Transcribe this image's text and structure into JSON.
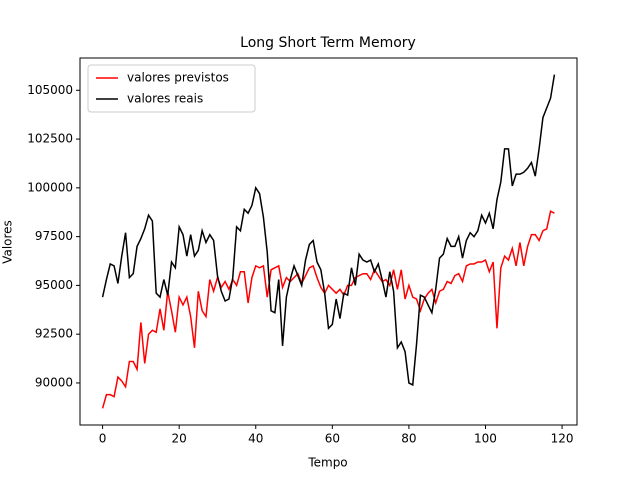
{
  "chart_data": {
    "type": "line",
    "title": "Long Short Term Memory",
    "x_label": "Tempo",
    "y_label": "Valores",
    "x": [
      0,
      1,
      2,
      3,
      4,
      5,
      6,
      7,
      8,
      9,
      10,
      11,
      12,
      13,
      14,
      15,
      16,
      17,
      18,
      19,
      20,
      21,
      22,
      23,
      24,
      25,
      26,
      27,
      28,
      29,
      30,
      31,
      32,
      33,
      34,
      35,
      36,
      37,
      38,
      39,
      40,
      41,
      42,
      43,
      44,
      45,
      46,
      47,
      48,
      49,
      50,
      51,
      52,
      53,
      54,
      55,
      56,
      57,
      58,
      59,
      60,
      61,
      62,
      63,
      64,
      65,
      66,
      67,
      68,
      69,
      70,
      71,
      72,
      73,
      74,
      75,
      76,
      77,
      78,
      79,
      80,
      81,
      82,
      83,
      84,
      85,
      86,
      87,
      88,
      89,
      90,
      91,
      92,
      93,
      94,
      95,
      96,
      97,
      98,
      99,
      100,
      101,
      102,
      103,
      104,
      105,
      106,
      107,
      108,
      109,
      110,
      111,
      112,
      113,
      114,
      115,
      116,
      117,
      118
    ],
    "series": [
      {
        "name": "valores previstos",
        "color": "#ff0000",
        "values": [
          88700,
          89400,
          89400,
          89300,
          90300,
          90100,
          89800,
          91100,
          91100,
          90700,
          93100,
          91000,
          92500,
          92700,
          92600,
          93800,
          92700,
          94700,
          93700,
          92600,
          94400,
          94000,
          94400,
          93400,
          91800,
          94700,
          93700,
          93400,
          95300,
          94700,
          95400,
          94900,
          95200,
          94800,
          95300,
          95000,
          95700,
          95700,
          94100,
          95400,
          96000,
          95900,
          96000,
          94400,
          95800,
          95900,
          96000,
          94900,
          95400,
          95200,
          95400,
          95600,
          95100,
          95500,
          95900,
          96000,
          95400,
          94900,
          94600,
          95000,
          94800,
          94600,
          94800,
          94500,
          95000,
          95000,
          95400,
          95500,
          95600,
          95600,
          95300,
          95800,
          95500,
          95200,
          95300,
          95000,
          95800,
          94800,
          95800,
          94300,
          95000,
          94400,
          94300,
          93700,
          94300,
          94600,
          94800,
          94100,
          94700,
          94800,
          95200,
          95100,
          95500,
          95600,
          95200,
          96000,
          96100,
          96100,
          96200,
          96200,
          96300,
          95700,
          96200,
          92800,
          95900,
          96500,
          96300,
          96900,
          96000,
          97200,
          96000,
          97000,
          97600,
          97600,
          97300,
          97800,
          97900,
          98800,
          98700
        ]
      },
      {
        "name": "valores reais",
        "color": "#000000",
        "values": [
          94400,
          95300,
          96100,
          96000,
          95100,
          96500,
          97700,
          95400,
          95600,
          97000,
          97400,
          97900,
          98600,
          98300,
          94600,
          94400,
          95300,
          94500,
          96200,
          95900,
          98000,
          97600,
          96500,
          97600,
          96500,
          96800,
          97800,
          97200,
          97600,
          97300,
          95500,
          94700,
          94200,
          94300,
          95400,
          98000,
          97800,
          98900,
          98700,
          99100,
          100000,
          99700,
          98500,
          96700,
          93700,
          93600,
          95300,
          91900,
          94400,
          95300,
          96000,
          95500,
          95000,
          96300,
          97100,
          97300,
          96200,
          95800,
          94600,
          92800,
          93000,
          94300,
          93300,
          94600,
          94500,
          95900,
          95000,
          96600,
          96300,
          96200,
          96300,
          95700,
          96100,
          95300,
          94400,
          95700,
          94700,
          91800,
          92100,
          91600,
          90000,
          89900,
          92000,
          94500,
          94400,
          94000,
          93600,
          94800,
          96400,
          96600,
          97400,
          97000,
          97000,
          97500,
          96400,
          97300,
          97700,
          97500,
          97800,
          98600,
          98200,
          98700,
          97900,
          99400,
          100300,
          102000,
          102000,
          100100,
          100700,
          100700,
          100800,
          101000,
          101300,
          100600,
          102000,
          103600,
          104100,
          104600,
          105800
        ]
      }
    ],
    "xlim": [
      -5.9,
      123.9
    ],
    "xticks": [
      0,
      20,
      40,
      60,
      80,
      100,
      120
    ],
    "ylim": [
      87845,
      106655
    ],
    "yticks": [
      90000,
      92500,
      95000,
      97500,
      100000,
      102500,
      105000
    ],
    "legend": "upper left"
  }
}
